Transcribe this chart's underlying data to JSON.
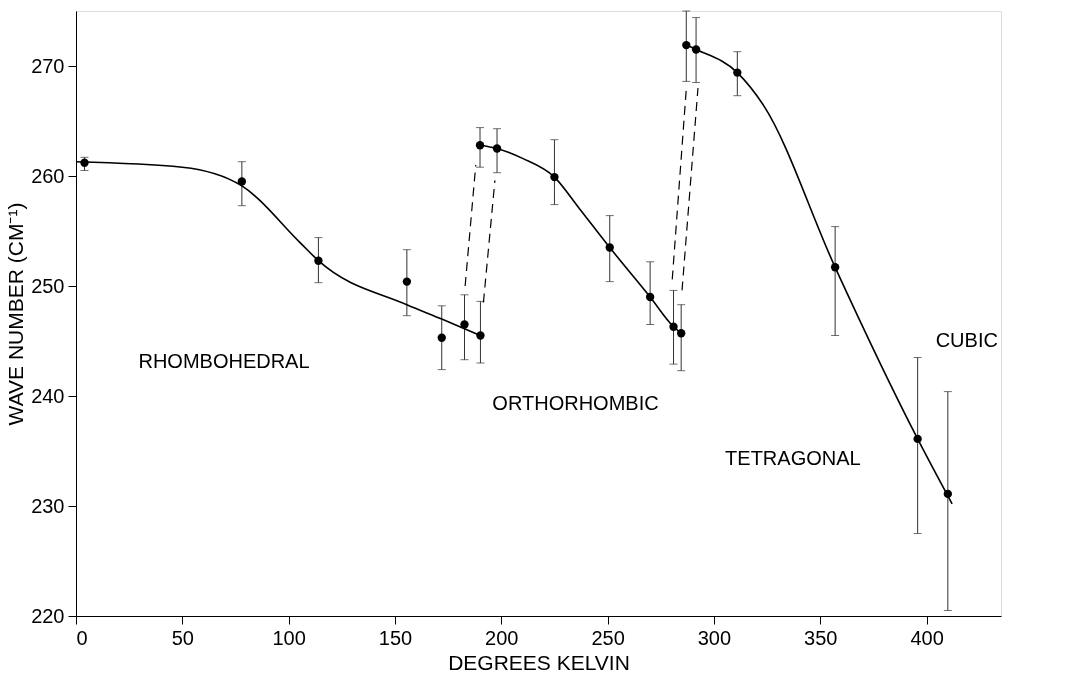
{
  "chart_data": {
    "type": "scatter",
    "xlabel": "DEGREES KELVIN",
    "ylabel": "WAVE NUMBER (CM⁻¹)",
    "xlim": [
      0,
      435
    ],
    "ylim": [
      220,
      275
    ],
    "xticks": [
      0,
      50,
      100,
      150,
      200,
      250,
      300,
      350,
      400
    ],
    "yticks": [
      220,
      230,
      240,
      250,
      260,
      270
    ],
    "grid": false,
    "series": [
      {
        "color": "#000000",
        "marker": "circle",
        "x": [
          4,
          78,
          114,
          155.6,
          172,
          182.7,
          190.2,
          190,
          198,
          225,
          251,
          270,
          281,
          284.6,
          287,
          291.6,
          311,
          357,
          395.8,
          410
        ],
        "values": [
          261.2,
          259.5,
          252.3,
          250.4,
          245.3,
          246.5,
          245.5,
          262.8,
          262.5,
          259.9,
          253.5,
          249.0,
          246.3,
          245.7,
          271.9,
          271.5,
          269.4,
          251.7,
          236.1,
          231.1
        ],
        "errors": [
          [
            260.5,
            261.7
          ],
          [
            257.3,
            261.3
          ],
          [
            250.3,
            254.4
          ],
          [
            247.3,
            253.3
          ],
          [
            242.4,
            248.2
          ],
          [
            243.3,
            249.2
          ],
          [
            243.0,
            248.6
          ],
          [
            260.8,
            264.4
          ],
          [
            260.3,
            264.3
          ],
          [
            257.4,
            263.3
          ],
          [
            250.4,
            256.4
          ],
          [
            246.5,
            252.2
          ],
          [
            242.9,
            249.6
          ],
          [
            242.3,
            248.3
          ],
          [
            268.6,
            275
          ],
          [
            268.5,
            274.4
          ],
          [
            267.3,
            271.3
          ],
          [
            245.5,
            255.4
          ],
          [
            227.5,
            243.5
          ],
          [
            220.5,
            240.4
          ]
        ]
      },
      {
        "type": "line",
        "color": "#000000",
        "line_style": "solid",
        "x": [
          0,
          50,
          78,
          105.6,
          114,
          155.6,
          172,
          190.2
        ],
        "values": [
          261.3,
          260.8,
          259.1,
          253.9,
          252.3,
          248.3,
          247.0,
          245.5
        ]
      },
      {
        "type": "line",
        "color": "#000000",
        "line_style": "solid",
        "x": [
          190,
          198,
          210,
          225,
          236.5,
          251,
          270,
          281,
          284.6
        ],
        "values": [
          262.8,
          262.5,
          261.6,
          259.9,
          257.1,
          253.5,
          249.0,
          246.3,
          245.7
        ]
      },
      {
        "type": "line",
        "color": "#000000",
        "line_style": "solid",
        "x": [
          287,
          291.6,
          311,
          323.4,
          357,
          395.8,
          412
        ],
        "values": [
          271.9,
          271.5,
          269.4,
          266.4,
          251.7,
          236.1,
          230.2
        ]
      },
      {
        "type": "line",
        "color": "#000000",
        "line_style": "dashed",
        "x": [
          183,
          188
        ],
        "values": [
          250,
          261
        ]
      },
      {
        "type": "line",
        "color": "#000000",
        "line_style": "dashed",
        "x": [
          191.6,
          197
        ],
        "values": [
          248.5,
          259.6
        ]
      },
      {
        "type": "line",
        "color": "#000000",
        "line_style": "dashed",
        "x": [
          280.4,
          287
        ],
        "values": [
          250.6,
          267.9
        ]
      },
      {
        "type": "line",
        "color": "#000000",
        "line_style": "dashed",
        "x": [
          285,
          292.5
        ],
        "values": [
          249.6,
          268
        ]
      }
    ],
    "annotations": [
      "RHOMBOHEDRAL",
      "ORTHORHOMBIC",
      "TETRAGONAL",
      "CUBIC"
    ]
  }
}
